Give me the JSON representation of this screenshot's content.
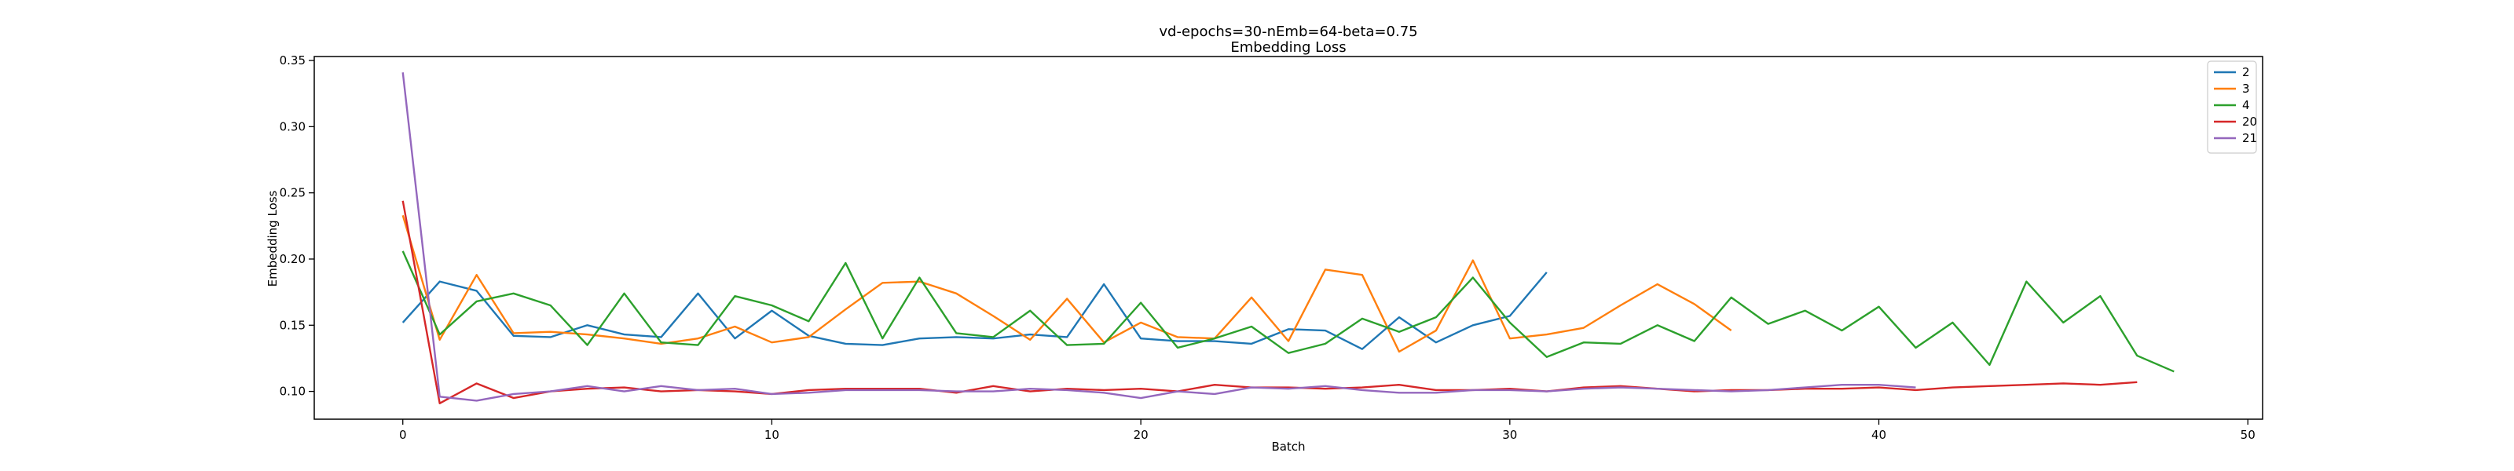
{
  "chart_data": {
    "type": "line",
    "title": "vd-epochs=30-nEmb=64-beta=0.75",
    "subtitle": "Embedding Loss",
    "xlabel": "Batch",
    "ylabel": "Embedding Loss",
    "xlim": [
      -2.4,
      50.4
    ],
    "ylim": [
      0.079,
      0.353
    ],
    "xticks": [
      0,
      10,
      20,
      30,
      40,
      50
    ],
    "yticks": [
      0.1,
      0.15,
      0.2,
      0.25,
      0.3,
      0.35
    ],
    "ytick_labels": [
      "0.10",
      "0.15",
      "0.20",
      "0.25",
      "0.30",
      "0.35"
    ],
    "grid": false,
    "legend": "top-right",
    "series": [
      {
        "name": "2",
        "color": "#1f77b4",
        "x_start": 0,
        "values": [
          0.152,
          0.183,
          0.176,
          0.142,
          0.141,
          0.15,
          0.143,
          0.141,
          0.174,
          0.14,
          0.161,
          0.142,
          0.136,
          0.135,
          0.14,
          0.141,
          0.14,
          0.143,
          0.141,
          0.181,
          0.14,
          0.138,
          0.138,
          0.136,
          0.147,
          0.146,
          0.132,
          0.156,
          0.137,
          0.15,
          0.157,
          0.19
        ]
      },
      {
        "name": "3",
        "color": "#ff7f0e",
        "x_start": 0,
        "values": [
          0.233,
          0.139,
          0.188,
          0.144,
          0.145,
          0.143,
          0.14,
          0.136,
          0.14,
          0.149,
          0.137,
          0.141,
          0.162,
          0.182,
          0.183,
          0.174,
          0.157,
          0.139,
          0.17,
          0.137,
          0.152,
          0.141,
          0.14,
          0.171,
          0.138,
          0.192,
          0.188,
          0.13,
          0.146,
          0.199,
          0.14,
          0.143,
          0.148,
          0.165,
          0.181,
          0.166,
          0.146
        ]
      },
      {
        "name": "4",
        "color": "#2ca02c",
        "x_start": 0,
        "values": [
          0.206,
          0.143,
          0.168,
          0.174,
          0.165,
          0.135,
          0.174,
          0.137,
          0.135,
          0.172,
          0.165,
          0.153,
          0.197,
          0.14,
          0.186,
          0.144,
          0.141,
          0.161,
          0.135,
          0.136,
          0.167,
          0.133,
          0.14,
          0.149,
          0.129,
          0.136,
          0.155,
          0.145,
          0.156,
          0.186,
          0.152,
          0.126,
          0.137,
          0.136,
          0.15,
          0.138,
          0.171,
          0.151,
          0.161,
          0.146,
          0.164,
          0.133,
          0.152,
          0.12,
          0.183,
          0.152,
          0.172,
          0.127,
          0.115
        ]
      },
      {
        "name": "20",
        "color": "#d62728",
        "x_start": 0,
        "values": [
          0.244,
          0.091,
          0.106,
          0.095,
          0.1,
          0.102,
          0.103,
          0.1,
          0.101,
          0.1,
          0.098,
          0.101,
          0.102,
          0.102,
          0.102,
          0.099,
          0.104,
          0.1,
          0.102,
          0.101,
          0.102,
          0.1,
          0.105,
          0.103,
          0.103,
          0.102,
          0.103,
          0.105,
          0.101,
          0.101,
          0.102,
          0.1,
          0.103,
          0.104,
          0.102,
          0.1,
          0.101,
          0.101,
          0.102,
          0.102,
          0.103,
          0.101,
          0.103,
          0.104,
          0.105,
          0.106,
          0.105,
          0.107
        ]
      },
      {
        "name": "21",
        "color": "#9467bd",
        "x_start": 0,
        "values": [
          0.341,
          0.096,
          0.093,
          0.098,
          0.1,
          0.104,
          0.1,
          0.104,
          0.101,
          0.102,
          0.098,
          0.099,
          0.101,
          0.101,
          0.101,
          0.1,
          0.1,
          0.102,
          0.101,
          0.099,
          0.095,
          0.1,
          0.098,
          0.103,
          0.102,
          0.104,
          0.101,
          0.099,
          0.099,
          0.101,
          0.101,
          0.1,
          0.102,
          0.103,
          0.102,
          0.101,
          0.1,
          0.101,
          0.103,
          0.105,
          0.105,
          0.103
        ]
      }
    ]
  }
}
